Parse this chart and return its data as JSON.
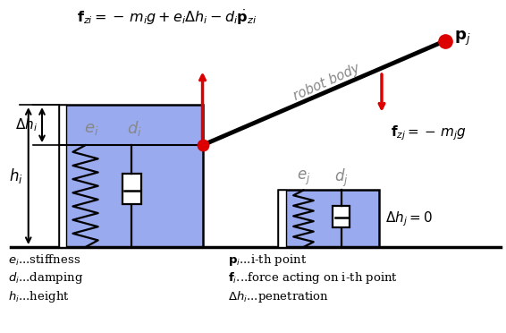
{
  "bg_color": "#ffffff",
  "box_fill": "#99aaee",
  "box_edge": "#000000",
  "red": "#dd0000",
  "black": "#000000",
  "gray": "#888888",
  "fig_width": 5.66,
  "fig_height": 3.72,
  "title_formula": "$\\mathbf{f}_{zi} = -\\,m_i g + e_i \\Delta h_i - d_i \\dot{\\mathbf{p}}_{zi}$",
  "fzj_formula": "$\\mathbf{f}_{zj} = -\\,m_j g$",
  "pj_label": "$\\mathbf{p}_j$",
  "ei_label": "$e_i$",
  "di_label": "$d_i$",
  "ej_label": "$e_j$",
  "dj_label": "$d_j$",
  "hi_label": "$h_i$",
  "dhi_label": "$\\Delta h_i$",
  "dhj_label": "$\\Delta h_j = 0$",
  "robot_body_label": "robot body",
  "legend": [
    [
      "$e_i$...stiffness",
      "$\\mathbf{p}_i$...i-th point"
    ],
    [
      "$d_i$...damping",
      "$\\mathbf{f}_i$...force acting on i-th point"
    ],
    [
      "$h_i$...height",
      "$\\Delta h_i$...penetration"
    ]
  ]
}
